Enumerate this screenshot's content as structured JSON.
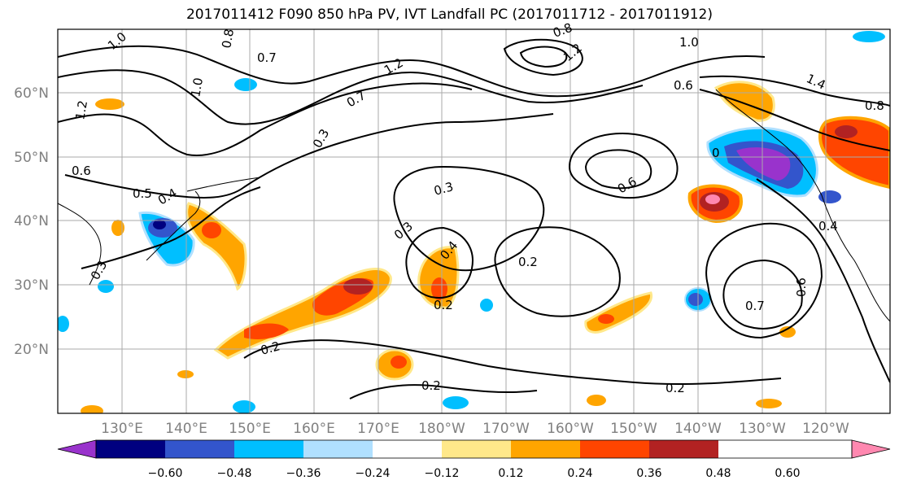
{
  "title": "2017011412 F090 850 hPa PV, IVT Landfall PC (2017011712 - 2017011912)",
  "lat_ticks": [
    "60°N",
    "50°N",
    "40°N",
    "30°N",
    "20°N"
  ],
  "lon_ticks": [
    "130°E",
    "140°E",
    "150°E",
    "160°E",
    "170°E",
    "180°W",
    "170°W",
    "160°W",
    "150°W",
    "140°W",
    "130°W",
    "120°W"
  ],
  "contour_labels": [
    "1.0",
    "0.8",
    "0.7",
    "1.2",
    "0.8",
    "1.2",
    "1.0",
    "0.6",
    "1.4",
    "0.8",
    "1.2",
    "1.0",
    "0.7",
    "0.3",
    "0.6",
    "0.4",
    "0.5",
    "0.3",
    "0.3",
    "0.4",
    "0.3",
    "0.2",
    "0.6",
    "0",
    "0.4",
    "0.2",
    "0.7",
    "0.6",
    "0.2",
    "0.2",
    "0.2"
  ],
  "colorbar": {
    "colors": [
      "#9933cc",
      "#000080",
      "#3355cc",
      "#00bfff",
      "#b0e0ff",
      "#ffffff",
      "#ffe88a",
      "#ffa500",
      "#ff4500",
      "#b22222",
      "#ff88b0"
    ],
    "tick_labels": [
      "−0.60",
      "−0.48",
      "−0.36",
      "−0.24",
      "−0.12",
      "0.12",
      "0.24",
      "0.36",
      "0.48",
      "0.60"
    ]
  }
}
